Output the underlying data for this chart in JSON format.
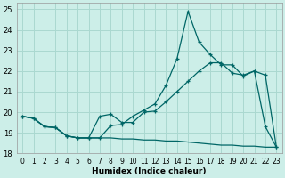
{
  "xlabel": "Humidex (Indice chaleur)",
  "xlim": [
    -0.5,
    23.5
  ],
  "ylim": [
    18,
    25.3
  ],
  "yticks": [
    18,
    19,
    20,
    21,
    22,
    23,
    24,
    25
  ],
  "xticks": [
    0,
    1,
    2,
    3,
    4,
    5,
    6,
    7,
    8,
    9,
    10,
    11,
    12,
    13,
    14,
    15,
    16,
    17,
    18,
    19,
    20,
    21,
    22,
    23
  ],
  "bg_color": "#cceee8",
  "grid_color": "#aad8d0",
  "line_color": "#006666",
  "line1_x": [
    0,
    1,
    2,
    3,
    4,
    5,
    6,
    7,
    8,
    9,
    10,
    11,
    12,
    13,
    14,
    15,
    16,
    17,
    18,
    19,
    20,
    21,
    22,
    23
  ],
  "line1_y": [
    19.8,
    19.7,
    19.3,
    19.25,
    18.85,
    18.75,
    18.75,
    18.75,
    19.35,
    19.4,
    19.8,
    20.1,
    20.4,
    21.3,
    22.6,
    24.9,
    23.4,
    22.8,
    22.3,
    22.3,
    21.75,
    22.0,
    19.3,
    18.3
  ],
  "line2_x": [
    0,
    1,
    2,
    3,
    4,
    5,
    6,
    7,
    8,
    9,
    10,
    11,
    12,
    13,
    14,
    15,
    16,
    17,
    18,
    19,
    20,
    21,
    22,
    23
  ],
  "line2_y": [
    19.8,
    19.7,
    19.3,
    19.25,
    18.85,
    18.75,
    18.75,
    19.8,
    19.9,
    19.5,
    19.5,
    20.0,
    20.05,
    20.5,
    21.0,
    21.5,
    22.0,
    22.4,
    22.4,
    21.9,
    21.8,
    22.0,
    21.8,
    18.3
  ],
  "line3_x": [
    0,
    1,
    2,
    3,
    4,
    5,
    6,
    7,
    8,
    9,
    10,
    11,
    12,
    13,
    14,
    15,
    16,
    17,
    18,
    19,
    20,
    21,
    22,
    23
  ],
  "line3_y": [
    19.8,
    19.7,
    19.3,
    19.25,
    18.85,
    18.75,
    18.75,
    18.75,
    18.75,
    18.7,
    18.7,
    18.65,
    18.65,
    18.6,
    18.6,
    18.55,
    18.5,
    18.45,
    18.4,
    18.4,
    18.35,
    18.35,
    18.3,
    18.3
  ]
}
